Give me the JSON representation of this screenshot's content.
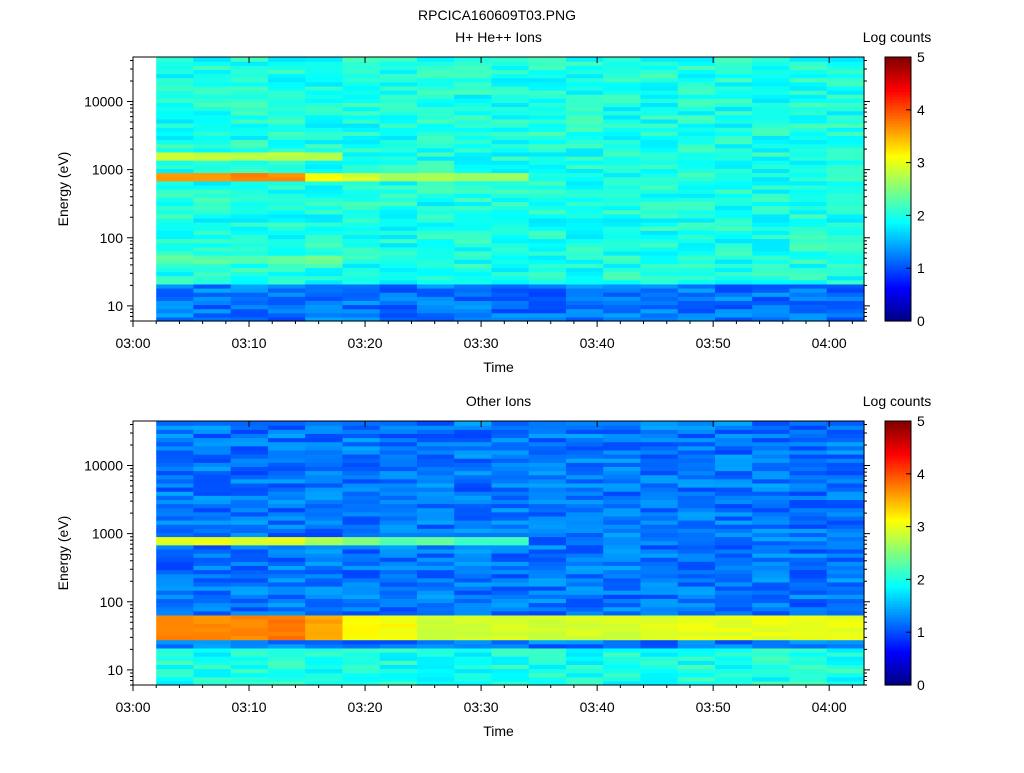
{
  "figure_title": "RPCICA160609T03.PNG",
  "colorbar": {
    "label": "Log counts",
    "ticks": [
      "0",
      "1",
      "2",
      "3",
      "4",
      "5"
    ],
    "range": [
      0,
      5
    ],
    "colormap": "jet"
  },
  "chart_data": [
    {
      "type": "heatmap",
      "title": "H+ He++ Ions",
      "xlabel": "Time",
      "ylabel": "Energy (eV)",
      "x_ticks": [
        "03:00",
        "03:10",
        "03:20",
        "03:30",
        "03:40",
        "03:50",
        "04:00"
      ],
      "xlim": [
        "03:00",
        "04:03"
      ],
      "data_start": "03:02",
      "y_ticks": [
        "10",
        "100",
        "1000",
        "10000"
      ],
      "yscale": "log",
      "ylim": [
        6,
        45000
      ],
      "time_bins": 19,
      "background_level": 2.0,
      "features": [
        {
          "description": "band near 750 eV",
          "energy_eV": [
            650,
            850
          ],
          "time": [
            "03:02",
            "03:33"
          ],
          "levels": [
            3.6,
            3.6,
            3.7,
            3.7,
            3.1,
            2.9,
            2.7,
            2.7,
            2.6
          ]
        },
        {
          "description": "band near 1500 eV",
          "energy_eV": [
            1350,
            1700
          ],
          "time": [
            "03:02",
            "03:17"
          ],
          "levels": [
            2.9,
            2.8,
            2.8,
            2.8
          ]
        },
        {
          "description": "band near 50 eV",
          "energy_eV": [
            40,
            55
          ],
          "time": [
            "03:02",
            "03:17"
          ],
          "levels": [
            2.3,
            2.3,
            2.3,
            2.4
          ]
        }
      ],
      "low_energy_level": 1.2
    },
    {
      "type": "heatmap",
      "title": "Other Ions",
      "xlabel": "Time",
      "ylabel": "Energy (eV)",
      "x_ticks": [
        "03:00",
        "03:10",
        "03:20",
        "03:30",
        "03:40",
        "03:50",
        "04:00"
      ],
      "xlim": [
        "03:00",
        "04:03"
      ],
      "data_start": "03:02",
      "y_ticks": [
        "10",
        "100",
        "1000",
        "10000"
      ],
      "yscale": "log",
      "ylim": [
        6,
        45000
      ],
      "time_bins": 19,
      "background_level": 1.2,
      "features": [
        {
          "description": "band near 750 eV",
          "energy_eV": [
            650,
            850
          ],
          "time": [
            "03:02",
            "03:33"
          ],
          "levels": [
            3.0,
            3.0,
            3.0,
            3.0,
            2.7,
            2.5,
            2.3,
            2.3,
            2.2
          ]
        },
        {
          "description": "band near 40 eV",
          "energy_eV": [
            28,
            60
          ],
          "time": [
            "03:02",
            "04:03"
          ],
          "levels": [
            3.7,
            3.7,
            3.7,
            3.8,
            3.6,
            3.1,
            3.1,
            2.9,
            2.9,
            2.9,
            2.9,
            2.9,
            2.9,
            3.0,
            3.0,
            3.0,
            3.0,
            3.0,
            3.0
          ]
        }
      ],
      "low_energy_level": 2.0
    }
  ]
}
